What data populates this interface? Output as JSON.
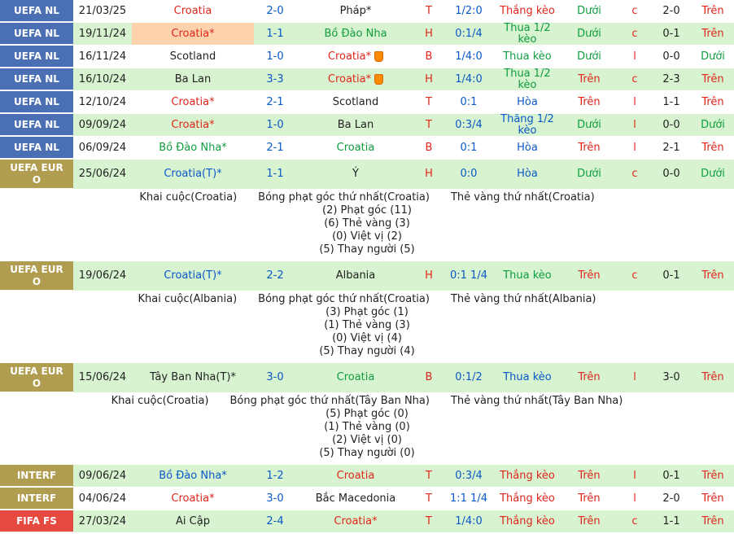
{
  "colors": {
    "league_blue": "#4a6fb3",
    "league_olive": "#b19d4f",
    "league_red": "#e64940",
    "red": "#e1251b",
    "green": "#0f9d3f",
    "blue": "#0a58c8",
    "black": "#222222",
    "row_green": "#d8f3d0",
    "highlight_peach": "#fdd3ad"
  },
  "table": {
    "rows": [
      {
        "type": "match",
        "bg": "white",
        "league": {
          "label": "UEFA NL",
          "color": "league_blue"
        },
        "date": "21/03/25",
        "home": {
          "name": "Croatia",
          "color": "red"
        },
        "score": "2-0",
        "away": {
          "name": "Pháp*",
          "color": "black"
        },
        "letter": "T",
        "handicap": "1/2:0",
        "result": {
          "label": "Thắng kèo",
          "color": "red"
        },
        "ou1": {
          "label": "Dưới",
          "color": "green"
        },
        "corner": "c",
        "score2": "2-0",
        "ou2": {
          "label": "Trên",
          "color": "red"
        }
      },
      {
        "type": "match",
        "bg": "green",
        "league": {
          "label": "UEFA NL",
          "color": "league_blue"
        },
        "date": "19/11/24",
        "home": {
          "name": "Croatia*",
          "color": "red",
          "highlight": true
        },
        "score": "1-1",
        "away": {
          "name": "Bồ Đào Nha",
          "color": "green"
        },
        "letter": "H",
        "handicap": "0:1/4",
        "result": {
          "label": "Thua 1/2 kèo",
          "color": "green"
        },
        "ou1": {
          "label": "Dưới",
          "color": "green"
        },
        "corner": "c",
        "score2": "0-1",
        "ou2": {
          "label": "Trên",
          "color": "red"
        }
      },
      {
        "type": "match",
        "bg": "white",
        "league": {
          "label": "UEFA NL",
          "color": "league_blue"
        },
        "date": "16/11/24",
        "home": {
          "name": "Scotland",
          "color": "black"
        },
        "score": "1-0",
        "away": {
          "name": "Croatia*",
          "color": "red",
          "card": true
        },
        "letter": "B",
        "handicap": "1/4:0",
        "result": {
          "label": "Thua kèo",
          "color": "green"
        },
        "ou1": {
          "label": "Dưới",
          "color": "green"
        },
        "corner": "l",
        "score2": "0-0",
        "ou2": {
          "label": "Dưới",
          "color": "green"
        }
      },
      {
        "type": "match",
        "bg": "green",
        "league": {
          "label": "UEFA NL",
          "color": "league_blue"
        },
        "date": "16/10/24",
        "home": {
          "name": "Ba Lan",
          "color": "black"
        },
        "score": "3-3",
        "away": {
          "name": "Croatia*",
          "color": "red",
          "card": true
        },
        "letter": "H",
        "handicap": "1/4:0",
        "result": {
          "label": "Thua 1/2 kèo",
          "color": "green"
        },
        "ou1": {
          "label": "Trên",
          "color": "red"
        },
        "corner": "c",
        "score2": "2-3",
        "ou2": {
          "label": "Trên",
          "color": "red"
        }
      },
      {
        "type": "match",
        "bg": "white",
        "league": {
          "label": "UEFA NL",
          "color": "league_blue"
        },
        "date": "12/10/24",
        "home": {
          "name": "Croatia*",
          "color": "red"
        },
        "score": "2-1",
        "away": {
          "name": "Scotland",
          "color": "black"
        },
        "letter": "T",
        "handicap": "0:1",
        "result": {
          "label": "Hòa",
          "color": "blue"
        },
        "ou1": {
          "label": "Trên",
          "color": "red"
        },
        "corner": "l",
        "score2": "1-1",
        "ou2": {
          "label": "Trên",
          "color": "red"
        }
      },
      {
        "type": "match",
        "bg": "green",
        "league": {
          "label": "UEFA NL",
          "color": "league_blue"
        },
        "date": "09/09/24",
        "home": {
          "name": "Croatia*",
          "color": "red"
        },
        "score": "1-0",
        "away": {
          "name": "Ba Lan",
          "color": "black"
        },
        "letter": "T",
        "handicap": "0:3/4",
        "result": {
          "label": "Thắng 1/2 kèo",
          "color": "blue"
        },
        "ou1": {
          "label": "Dưới",
          "color": "green"
        },
        "corner": "l",
        "score2": "0-0",
        "ou2": {
          "label": "Dưới",
          "color": "green"
        }
      },
      {
        "type": "match",
        "bg": "white",
        "league": {
          "label": "UEFA NL",
          "color": "league_blue"
        },
        "date": "06/09/24",
        "home": {
          "name": "Bồ Đào Nha*",
          "color": "green"
        },
        "score": "2-1",
        "away": {
          "name": "Croatia",
          "color": "green"
        },
        "letter": "B",
        "handicap": "0:1",
        "result": {
          "label": "Hòa",
          "color": "blue"
        },
        "ou1": {
          "label": "Trên",
          "color": "red"
        },
        "corner": "l",
        "score2": "2-1",
        "ou2": {
          "label": "Trên",
          "color": "red"
        }
      },
      {
        "type": "match",
        "bg": "green",
        "tall": true,
        "league": {
          "label": "UEFA EURO",
          "color": "league_olive"
        },
        "date": "25/06/24",
        "home": {
          "name": "Croatia(T)*",
          "color": "blue"
        },
        "score": "1-1",
        "away": {
          "name": "Ý",
          "color": "black"
        },
        "letter": "H",
        "handicap": "0:0",
        "result": {
          "label": "Hòa",
          "color": "blue"
        },
        "ou1": {
          "label": "Dưới",
          "color": "green"
        },
        "corner": "c",
        "score2": "0-0",
        "ou2": {
          "label": "Dưới",
          "color": "green"
        }
      },
      {
        "type": "detail",
        "header": [
          "Khai cuộc(Croatia)",
          "Bóng phạt góc thứ nhất(Croatia)",
          "Thẻ vàng thứ nhất(Croatia)"
        ],
        "lines": [
          "(2) Phạt góc (11)",
          "(6) Thẻ vàng (3)",
          "(0) Việt vị (2)",
          "(5) Thay người (5)"
        ]
      },
      {
        "type": "match",
        "bg": "green",
        "tall": true,
        "league": {
          "label": "UEFA EURO",
          "color": "league_olive"
        },
        "date": "19/06/24",
        "home": {
          "name": "Croatia(T)*",
          "color": "blue"
        },
        "score": "2-2",
        "away": {
          "name": "Albania",
          "color": "black"
        },
        "letter": "H",
        "handicap": "0:1 1/4",
        "result": {
          "label": "Thua kèo",
          "color": "green"
        },
        "ou1": {
          "label": "Trên",
          "color": "red"
        },
        "corner": "c",
        "score2": "0-1",
        "ou2": {
          "label": "Trên",
          "color": "red"
        }
      },
      {
        "type": "detail",
        "header": [
          "Khai cuộc(Albania)",
          "Bóng phạt góc thứ nhất(Croatia)",
          "Thẻ vàng thứ nhất(Albania)"
        ],
        "lines": [
          "(3) Phạt góc (1)",
          "(1) Thẻ vàng (3)",
          "(0) Việt vị (4)",
          "(5) Thay người (4)"
        ]
      },
      {
        "type": "match",
        "bg": "green",
        "tall": true,
        "league": {
          "label": "UEFA EURO",
          "color": "league_olive"
        },
        "date": "15/06/24",
        "home": {
          "name": "Tây Ban Nha(T)*",
          "color": "black"
        },
        "score": "3-0",
        "away": {
          "name": "Croatia",
          "color": "green"
        },
        "letter": "B",
        "handicap": "0:1/2",
        "result": {
          "label": "Thua kèo",
          "color": "blue"
        },
        "ou1": {
          "label": "Trên",
          "color": "red"
        },
        "corner": "l",
        "score2": "3-0",
        "ou2": {
          "label": "Trên",
          "color": "red"
        }
      },
      {
        "type": "detail",
        "header": [
          "Khai cuộc(Croatia)",
          "Bóng phạt góc thứ nhất(Tây Ban Nha)",
          "Thẻ vàng thứ nhất(Tây Ban Nha)"
        ],
        "lines": [
          "(5) Phạt góc (0)",
          "(1) Thẻ vàng (0)",
          "(2) Việt vị (0)",
          "(5) Thay người (0)"
        ]
      },
      {
        "type": "match",
        "bg": "green",
        "league": {
          "label": "INTERF",
          "color": "league_olive"
        },
        "date": "09/06/24",
        "home": {
          "name": "Bồ Đào Nha*",
          "color": "blue"
        },
        "score": "1-2",
        "away": {
          "name": "Croatia",
          "color": "red"
        },
        "letter": "T",
        "handicap": "0:3/4",
        "result": {
          "label": "Thắng kèo",
          "color": "red"
        },
        "ou1": {
          "label": "Trên",
          "color": "red"
        },
        "corner": "l",
        "score2": "0-1",
        "ou2": {
          "label": "Trên",
          "color": "red"
        }
      },
      {
        "type": "match",
        "bg": "white",
        "league": {
          "label": "INTERF",
          "color": "league_olive"
        },
        "date": "04/06/24",
        "home": {
          "name": "Croatia*",
          "color": "red"
        },
        "score": "3-0",
        "away": {
          "name": "Bắc Macedonia",
          "color": "black"
        },
        "letter": "T",
        "handicap": "1:1 1/4",
        "result": {
          "label": "Thắng kèo",
          "color": "red"
        },
        "ou1": {
          "label": "Trên",
          "color": "red"
        },
        "corner": "l",
        "score2": "2-0",
        "ou2": {
          "label": "Trên",
          "color": "red"
        }
      },
      {
        "type": "match",
        "bg": "green",
        "league": {
          "label": "FIFA FS",
          "color": "league_red"
        },
        "date": "27/03/24",
        "home": {
          "name": "Ai Cập",
          "color": "black"
        },
        "score": "2-4",
        "away": {
          "name": "Croatia*",
          "color": "red"
        },
        "letter": "T",
        "handicap": "1/4:0",
        "result": {
          "label": "Thắng kèo",
          "color": "red"
        },
        "ou1": {
          "label": "Trên",
          "color": "red"
        },
        "corner": "c",
        "score2": "1-1",
        "ou2": {
          "label": "Trên",
          "color": "red"
        }
      }
    ]
  }
}
